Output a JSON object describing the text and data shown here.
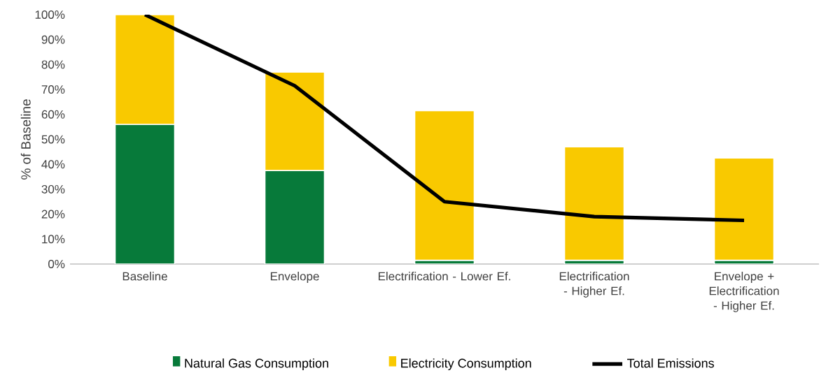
{
  "chart_data": {
    "type": "bar",
    "stacked": true,
    "ylabel": "% of Baseline",
    "categories": [
      "Baseline",
      "Envelope",
      "Electrification - Lower Ef.",
      "Electrification - Higher Ef.",
      "Envelope + Electrification - Higher Ef."
    ],
    "series": [
      {
        "name": "Natural Gas Consumption",
        "color": "#077a3a",
        "values": [
          56,
          37.5,
          1.5,
          1.5,
          1.5
        ]
      },
      {
        "name": "Electricity Consumption",
        "color": "#f9c900",
        "values": [
          44,
          39.5,
          60,
          45.5,
          41
        ]
      },
      {
        "name": "Total Emissions",
        "type": "line",
        "color": "#000000",
        "values": [
          100,
          71.5,
          25,
          19,
          17.5
        ]
      }
    ],
    "ylim": [
      0,
      100
    ],
    "yticks": [
      {
        "value": 0,
        "label": "0%"
      },
      {
        "value": 10,
        "label": "10%"
      },
      {
        "value": 20,
        "label": "20%"
      },
      {
        "value": 30,
        "label": "30%"
      },
      {
        "value": 40,
        "label": "40%"
      },
      {
        "value": 50,
        "label": "50%"
      },
      {
        "value": 60,
        "label": "60%"
      },
      {
        "value": 70,
        "label": "70%"
      },
      {
        "value": 80,
        "label": "80%"
      },
      {
        "value": 90,
        "label": "90%"
      },
      {
        "value": 100,
        "label": "100%"
      }
    ],
    "legend": "bottom"
  }
}
